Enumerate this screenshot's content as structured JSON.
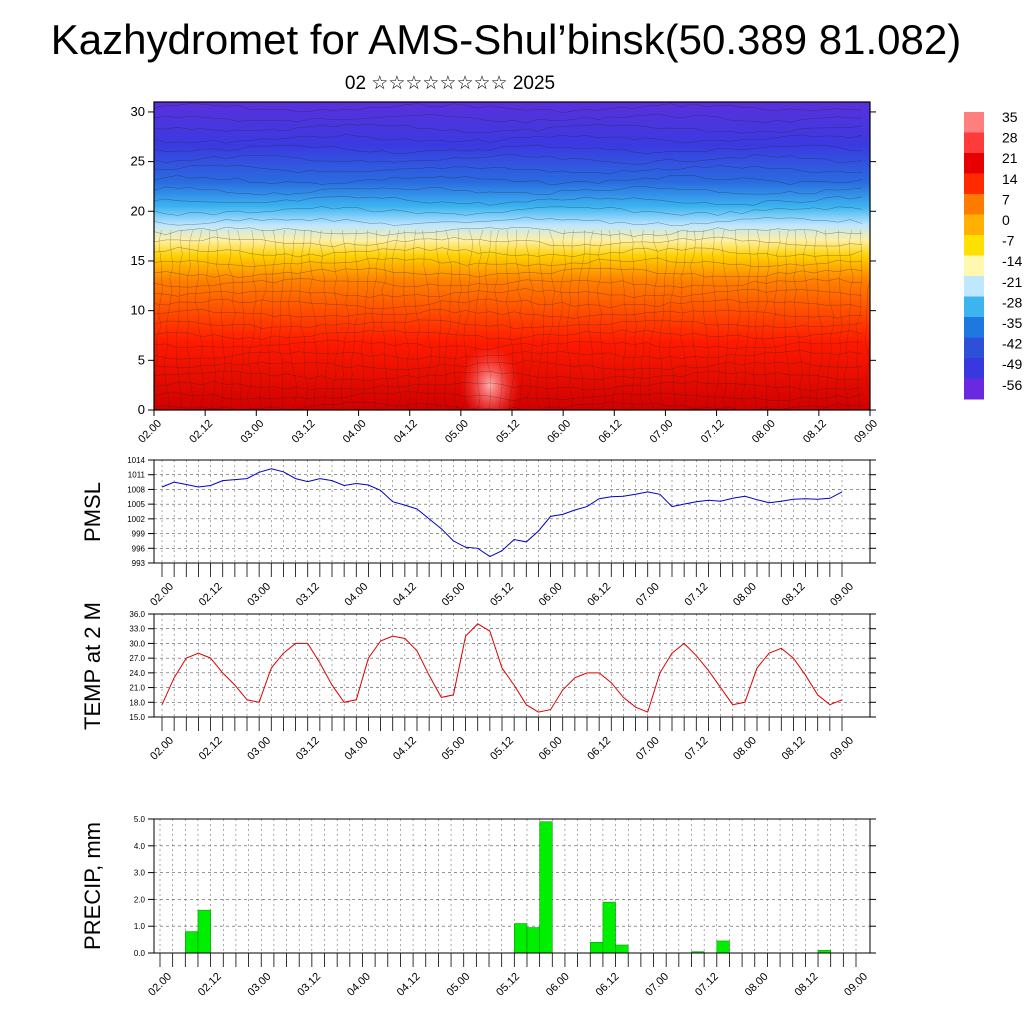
{
  "title": "Kazhydromet for AMS-Shul’binsk(50.389 81.082)",
  "subtitle": "02 ☆☆☆☆☆☆☆☆ 2025",
  "colors": {
    "pmsl_line": "#0000cc",
    "temp_line": "#dd0000",
    "precip_bar": "#00ee00",
    "grid": "#555555"
  },
  "chart_data": [
    {
      "type": "heatmap",
      "title": "",
      "x_ticks": [
        "02.00",
        "02.12",
        "03.00",
        "03.12",
        "04.00",
        "04.12",
        "05.00",
        "05.12",
        "06.00",
        "06.12",
        "07.00",
        "07.12",
        "08.00",
        "08.12",
        "09.00"
      ],
      "y_ticks": [
        "0",
        "5",
        "10",
        "15",
        "20",
        "25",
        "30"
      ],
      "ylim": [
        0,
        31
      ],
      "colorbar": {
        "labels": [
          "35",
          "28",
          "21",
          "14",
          "7",
          "0",
          "-7",
          "-14",
          "-21",
          "-28",
          "-35",
          "-42",
          "-49",
          "-56"
        ],
        "colors": [
          "#ff7f7f",
          "#ff3a3a",
          "#e60000",
          "#ff2a00",
          "#ff7a00",
          "#ffb000",
          "#ffe000",
          "#fff8b0",
          "#bfe8ff",
          "#3cb4f0",
          "#1e78e0",
          "#2e50d8",
          "#3838e0",
          "#6a28e0"
        ]
      },
      "overlay": "wind streamlines"
    },
    {
      "type": "line",
      "ylabel": "PMSL",
      "ylim": [
        993,
        1014
      ],
      "y_ticks": [
        "1014",
        "1011",
        "1008",
        "1005",
        "1002",
        "999",
        "996",
        "993"
      ],
      "x_ticks": [
        "02.00",
        "02.12",
        "03.00",
        "03.12",
        "04.00",
        "04.12",
        "05.00",
        "05.12",
        "06.00",
        "06.12",
        "07.00",
        "07.12",
        "08.00",
        "08.12",
        "09.00"
      ],
      "series": [
        {
          "values": [
            1008.5,
            1009.5,
            1009,
            1008.5,
            1008.8,
            1009.8,
            1010.0,
            1010.2,
            1011.5,
            1012.2,
            1011.6,
            1010.2,
            1009.6,
            1010.2,
            1009.8,
            1008.8,
            1009.2,
            1008.9,
            1007.8,
            1005.5,
            1004.8,
            1004.0,
            1002.0,
            1000.0,
            997.5,
            996.2,
            996.0,
            994.3,
            995.5,
            997.8,
            997.3,
            999.5,
            1002.5,
            1002.9,
            1003.8,
            1004.5,
            1006.1,
            1006.5,
            1006.6,
            1007.0,
            1007.5,
            1007.0,
            1004.5,
            1005.0,
            1005.5,
            1005.8,
            1005.6,
            1006.2,
            1006.6,
            1005.9,
            1005.3,
            1005.6,
            1006.0,
            1006.1,
            1006.0,
            1006.2,
            1007.5
          ]
        }
      ]
    },
    {
      "type": "line",
      "ylabel": "TEMP at 2 M",
      "ylim": [
        15,
        36
      ],
      "y_ticks": [
        "36.0",
        "33.0",
        "30.0",
        "27.0",
        "24.0",
        "21.0",
        "18.0",
        "15.0"
      ],
      "x_ticks": [
        "02.00",
        "02.12",
        "03.00",
        "03.12",
        "04.00",
        "04.12",
        "05.00",
        "05.12",
        "06.00",
        "06.12",
        "07.00",
        "07.12",
        "08.00",
        "08.12",
        "09.00"
      ],
      "series": [
        {
          "values": [
            17.5,
            23.0,
            27.0,
            28.0,
            27.0,
            24.0,
            21.5,
            18.5,
            18.0,
            25.0,
            28.0,
            30.0,
            30.0,
            26.0,
            21.5,
            18.0,
            18.5,
            27.0,
            30.5,
            31.5,
            31.0,
            28.5,
            23.5,
            19.0,
            19.5,
            31.5,
            34.0,
            32.5,
            25.0,
            21.5,
            17.5,
            16.0,
            16.5,
            20.5,
            23.0,
            24.0,
            24.0,
            22.0,
            19.0,
            17.0,
            16.0,
            24.0,
            28.0,
            30.0,
            27.5,
            24.5,
            21.0,
            17.5,
            18.0,
            25.0,
            28.0,
            29.0,
            27.0,
            23.5,
            19.5,
            17.5,
            18.5
          ]
        }
      ]
    },
    {
      "type": "bar",
      "ylabel": "PRECIP, mm",
      "ylim": [
        0,
        5
      ],
      "y_ticks": [
        "5.0",
        "4.0",
        "3.0",
        "2.0",
        "1.0",
        "0.0"
      ],
      "x_ticks": [
        "02.00",
        "02.12",
        "03.00",
        "03.12",
        "04.00",
        "04.12",
        "05.00",
        "05.12",
        "06.00",
        "06.12",
        "07.00",
        "07.12",
        "08.00",
        "08.12",
        "09.00"
      ],
      "values": [
        0,
        0,
        0.8,
        1.6,
        0,
        0,
        0,
        0,
        0,
        0,
        0,
        0,
        0,
        0,
        0,
        0,
        0,
        0,
        0,
        0,
        0,
        0,
        0,
        0,
        0,
        0,
        0,
        0,
        1.1,
        0.95,
        4.9,
        0,
        0,
        0,
        0.4,
        1.9,
        0.3,
        0,
        0,
        0,
        0,
        0,
        0.05,
        0,
        0.45,
        0,
        0,
        0,
        0,
        0,
        0,
        0,
        0.1,
        0,
        0,
        0
      ]
    }
  ]
}
